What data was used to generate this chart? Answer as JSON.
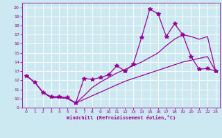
{
  "xlabel": "Windchill (Refroidissement éolien,°C)",
  "background_color": "#cce8f0",
  "line_color": "#990099",
  "xlim": [
    -0.5,
    23.5
  ],
  "ylim": [
    9,
    20.5
  ],
  "xticks": [
    0,
    1,
    2,
    3,
    4,
    5,
    6,
    7,
    8,
    9,
    10,
    11,
    12,
    13,
    14,
    15,
    16,
    17,
    18,
    19,
    20,
    21,
    22,
    23
  ],
  "yticks": [
    9,
    10,
    11,
    12,
    13,
    14,
    15,
    16,
    17,
    18,
    19,
    20
  ],
  "series": [
    {
      "x": [
        0,
        1,
        2,
        3,
        4,
        5,
        6,
        7,
        8,
        9,
        10,
        11,
        12,
        13,
        14,
        15,
        16,
        17,
        18,
        19,
        20,
        21,
        22,
        23
      ],
      "y": [
        12.5,
        11.8,
        10.7,
        10.2,
        10.2,
        10.1,
        9.5,
        12.2,
        12.1,
        12.3,
        12.6,
        13.6,
        13.0,
        13.8,
        16.7,
        19.8,
        19.3,
        16.8,
        18.2,
        17.0,
        14.6,
        13.2,
        13.3,
        13.0
      ],
      "marker": "*",
      "markersize": 4,
      "linewidth": 0.9
    },
    {
      "x": [
        0,
        1,
        2,
        3,
        4,
        5,
        6,
        7,
        8,
        9,
        10,
        11,
        12,
        13,
        14,
        15,
        16,
        17,
        18,
        19,
        20,
        21,
        22,
        23
      ],
      "y": [
        12.5,
        11.8,
        10.7,
        10.1,
        10.1,
        10.0,
        9.5,
        10.3,
        11.2,
        11.8,
        12.3,
        12.8,
        13.2,
        13.6,
        14.0,
        14.5,
        15.0,
        15.8,
        16.5,
        17.0,
        16.8,
        16.5,
        16.8,
        13.0
      ],
      "marker": "",
      "markersize": 0,
      "linewidth": 0.9
    },
    {
      "x": [
        0,
        1,
        2,
        3,
        4,
        5,
        6,
        7,
        8,
        9,
        10,
        11,
        12,
        13,
        14,
        15,
        16,
        17,
        18,
        19,
        20,
        21,
        22,
        23
      ],
      "y": [
        12.5,
        11.8,
        10.7,
        10.1,
        10.1,
        10.0,
        9.5,
        9.9,
        10.3,
        10.7,
        11.1,
        11.5,
        11.9,
        12.2,
        12.5,
        12.8,
        13.1,
        13.4,
        13.7,
        14.0,
        14.2,
        14.4,
        14.6,
        13.0
      ],
      "marker": "",
      "markersize": 0,
      "linewidth": 0.9
    }
  ]
}
